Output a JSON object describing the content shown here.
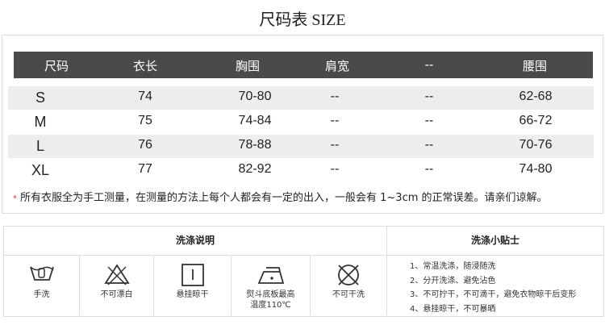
{
  "title": "尺码表 SIZE",
  "table": {
    "headers": [
      "尺码",
      "衣长",
      "胸围",
      "肩宽",
      "--",
      "腰围"
    ],
    "rows": [
      [
        "S",
        "74",
        "70-80",
        "--",
        "--",
        "62-68"
      ],
      [
        "M",
        "75",
        "74-84",
        "--",
        "--",
        "66-72"
      ],
      [
        "L",
        "76",
        "78-88",
        "--",
        "--",
        "70-76"
      ],
      [
        "XL",
        "77",
        "82-92",
        "--",
        "--",
        "74-80"
      ]
    ]
  },
  "note": {
    "star": "*",
    "text": "所有衣服全为手工测量，在测量的方法上每个人都会有一定的出入，一般会有 1~3cm 的正常误差。请亲们谅解。"
  },
  "care": {
    "title": "洗涤说明",
    "items": [
      {
        "icon": "hand-wash-icon",
        "label": "手洗"
      },
      {
        "icon": "no-bleach-icon",
        "label": "不可漂白"
      },
      {
        "icon": "hang-dry-icon",
        "label": "悬挂晾干"
      },
      {
        "icon": "iron-icon",
        "label": "熨斗底板最高\n温度110℃"
      },
      {
        "icon": "no-dry-clean-icon",
        "label": "不可干洗"
      }
    ]
  },
  "tips": {
    "title": "洗涤小贴士",
    "items": [
      "1、常温洗涤，随浸随洗",
      "2、分开洗涤、避免沾色",
      "3、不可拧干，不可滴干，避免衣物晾干后变形",
      "4、悬挂晾干，不可暴晒"
    ]
  },
  "colors": {
    "header_bg": "#4a4a4a",
    "row_alt": "#efecec",
    "star": "#e33333"
  }
}
